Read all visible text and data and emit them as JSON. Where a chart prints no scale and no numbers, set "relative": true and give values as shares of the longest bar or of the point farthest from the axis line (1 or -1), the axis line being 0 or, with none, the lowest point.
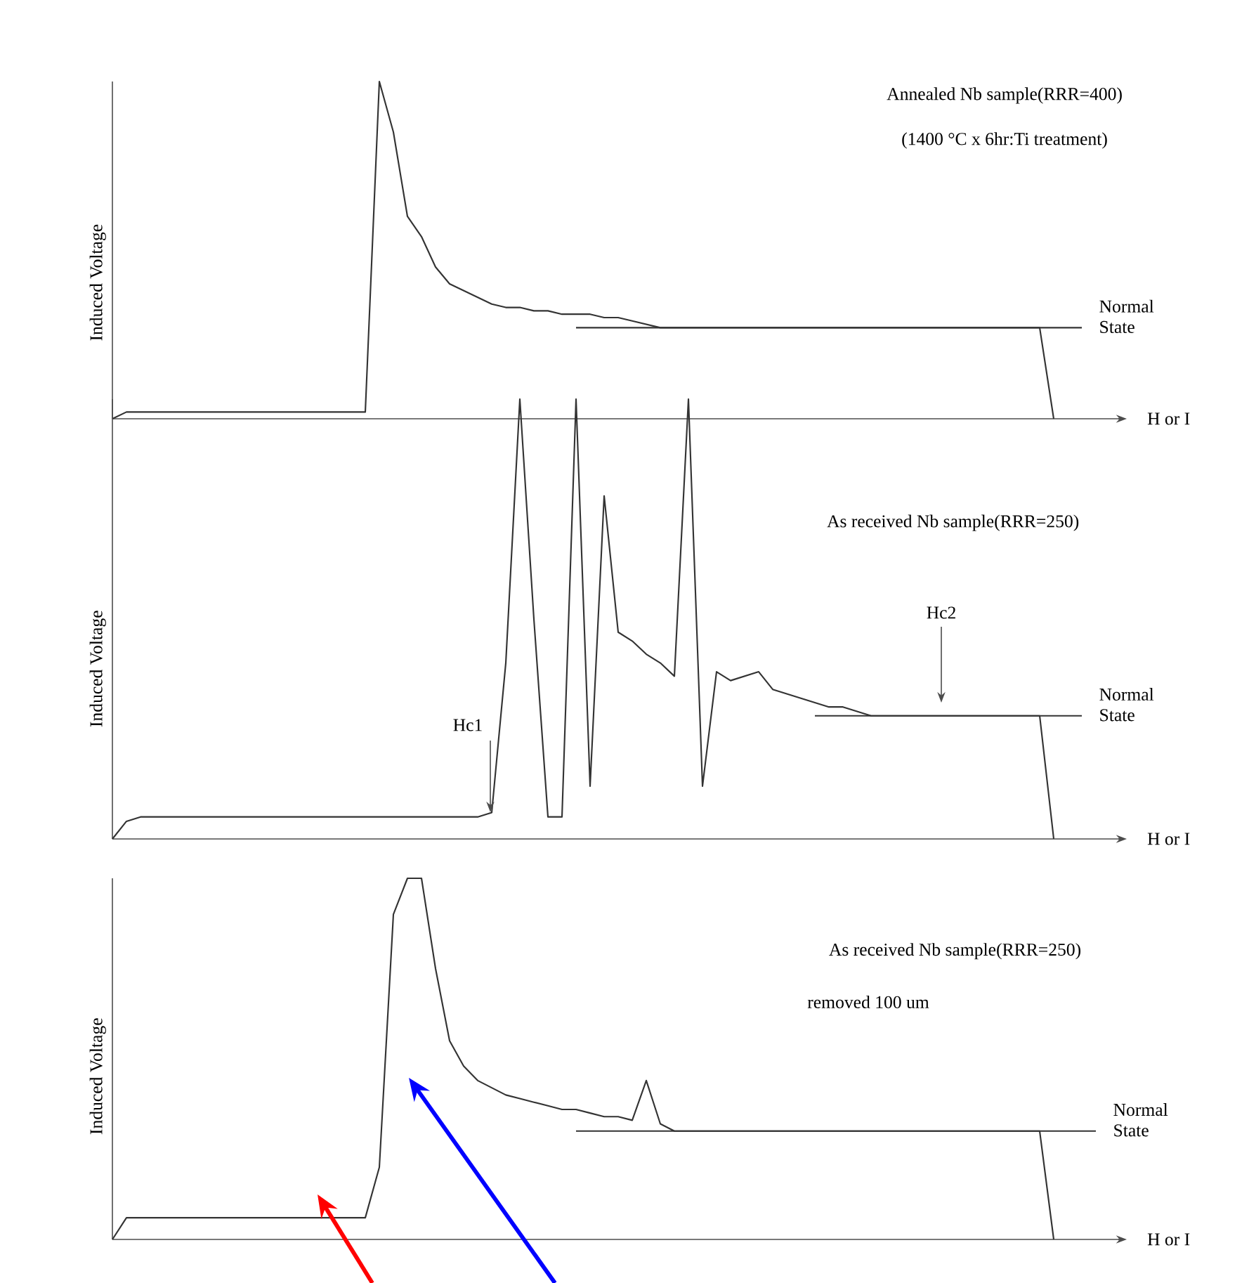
{
  "chart_data": [
    {
      "type": "line",
      "relative": true,
      "title": "Annealed Nb sample(RRR=400)",
      "subtitle": "(1400 °C x 6hr:Ti treatment)",
      "xlabel": "H or I",
      "ylabel": "Induced Voltage",
      "categories": [
        null,
        null,
        null,
        null,
        null,
        null,
        null,
        null,
        null,
        null,
        null,
        null,
        null,
        null,
        null,
        null,
        null,
        null,
        null,
        null,
        null,
        null,
        null,
        null,
        null,
        null,
        null,
        null,
        null,
        null,
        null,
        null,
        null,
        null,
        null,
        null,
        null,
        null,
        null,
        null,
        null,
        null,
        null,
        null,
        null,
        null,
        null,
        null,
        null,
        null,
        null,
        null,
        null,
        null,
        null,
        null,
        null,
        null,
        null,
        null,
        null,
        null,
        null,
        null,
        null,
        null,
        null,
        null,
        null,
        null,
        null,
        null,
        null
      ],
      "series": [
        {
          "color": "#333333",
          "values": [
            0,
            0.02,
            0.02,
            0.02,
            0.02,
            0.02,
            0.02,
            0.02,
            0.02,
            0.02,
            0.02,
            0.02,
            0.02,
            0.02,
            0.02,
            0.02,
            0.02,
            0.02,
            0.02,
            1,
            0.85,
            0.6,
            0.54,
            0.45,
            0.4,
            0.38,
            0.36,
            0.34,
            0.33,
            0.33,
            0.32,
            0.32,
            0.31,
            0.31,
            0.31,
            0.3,
            0.3,
            0.29,
            0.28,
            0.27,
            0.27,
            0.27,
            0.27,
            0.27,
            0.27,
            0.27,
            0.27,
            0.27,
            0.27,
            0.27,
            0.27,
            0.27,
            0.27,
            0.27,
            0.27,
            0.27,
            0.27,
            0.27,
            0.27,
            0.27,
            0.27,
            0.27,
            0.27,
            0.27,
            0.27,
            0.27,
            0.27,
            0,
            null,
            null,
            null,
            null,
            null
          ]
        },
        {
          "name": "Normal State",
          "color": "#333333",
          "values": [
            null,
            null,
            null,
            null,
            null,
            null,
            null,
            null,
            null,
            null,
            null,
            null,
            null,
            null,
            null,
            null,
            null,
            null,
            null,
            null,
            null,
            null,
            null,
            null,
            null,
            null,
            null,
            null,
            null,
            null,
            null,
            null,
            null,
            0.27,
            0.27,
            0.27,
            0.27,
            0.27,
            0.27,
            0.27,
            0.27,
            0.27,
            0.27,
            0.27,
            0.27,
            0.27,
            0.27,
            0.27,
            0.27,
            0.27,
            0.27,
            0.27,
            0.27,
            0.27,
            0.27,
            0.27,
            0.27,
            0.27,
            0.27,
            0.27,
            0.27,
            0.27,
            0.27,
            0.27,
            0.27,
            0.27,
            0.27,
            0.27,
            0.27,
            0.27,
            null,
            null,
            null
          ]
        }
      ]
    },
    {
      "type": "line",
      "relative": true,
      "title": "As received Nb sample(RRR=250)",
      "xlabel": "H or I",
      "ylabel": "Induced Voltage",
      "annotations": [
        "Hc1",
        "Hc2"
      ],
      "categories": [
        null,
        null,
        null,
        null,
        null,
        null,
        null,
        null,
        null,
        null,
        null,
        null,
        null,
        null,
        null,
        null,
        null,
        null,
        null,
        null,
        null,
        null,
        null,
        null,
        null,
        null,
        null,
        null,
        null,
        null,
        null,
        null,
        null,
        null,
        null,
        null,
        null,
        null,
        null,
        null,
        null,
        null,
        null,
        null,
        null,
        null,
        null,
        null,
        null,
        null,
        null,
        null,
        null,
        null,
        null,
        null,
        null,
        null,
        null,
        null,
        null,
        null,
        null,
        null,
        null,
        null,
        null,
        null,
        null,
        null,
        null,
        null,
        null
      ],
      "series": [
        {
          "color": "#333333",
          "values": [
            0,
            0.04,
            0.05,
            0.05,
            0.05,
            0.05,
            0.05,
            0.05,
            0.05,
            0.05,
            0.05,
            0.05,
            0.05,
            0.05,
            0.05,
            0.05,
            0.05,
            0.05,
            0.05,
            0.05,
            0.05,
            0.05,
            0.05,
            0.05,
            0.05,
            0.05,
            0.05,
            0.06,
            0.4,
            1,
            0.5,
            0.05,
            0.05,
            1,
            0.12,
            0.78,
            0.47,
            0.45,
            0.42,
            0.4,
            0.37,
            1,
            0.12,
            0.38,
            0.36,
            0.37,
            0.38,
            0.34,
            0.33,
            0.32,
            0.31,
            0.3,
            0.3,
            0.29,
            0.28,
            0.28,
            0.28,
            0.28,
            0.28,
            0.28,
            0.28,
            0.28,
            0.28,
            0.28,
            0.28,
            0.28,
            0.28,
            0,
            null,
            null,
            null,
            null,
            null
          ]
        },
        {
          "name": "Normal State",
          "color": "#333333",
          "values": [
            null,
            null,
            null,
            null,
            null,
            null,
            null,
            null,
            null,
            null,
            null,
            null,
            null,
            null,
            null,
            null,
            null,
            null,
            null,
            null,
            null,
            null,
            null,
            null,
            null,
            null,
            null,
            null,
            null,
            null,
            null,
            null,
            null,
            null,
            null,
            null,
            null,
            null,
            null,
            null,
            null,
            null,
            null,
            null,
            null,
            null,
            null,
            null,
            null,
            null,
            0.28,
            0.28,
            0.28,
            0.28,
            0.28,
            0.28,
            0.28,
            0.28,
            0.28,
            0.28,
            0.28,
            0.28,
            0.28,
            0.28,
            0.28,
            0.28,
            0.28,
            0.28,
            0.28,
            0.28,
            null,
            null,
            null
          ]
        }
      ]
    },
    {
      "type": "line",
      "relative": true,
      "title": "As received Nb sample(RRR=250)",
      "subtitle": "removed 100 um",
      "xlabel": "H or I",
      "ylabel": "Induced Voltage",
      "categories": [
        null,
        null,
        null,
        null,
        null,
        null,
        null,
        null,
        null,
        null,
        null,
        null,
        null,
        null,
        null,
        null,
        null,
        null,
        null,
        null,
        null,
        null,
        null,
        null,
        null,
        null,
        null,
        null,
        null,
        null,
        null,
        null,
        null,
        null,
        null,
        null,
        null,
        null,
        null,
        null,
        null,
        null,
        null,
        null,
        null,
        null,
        null,
        null,
        null,
        null,
        null,
        null,
        null,
        null,
        null,
        null,
        null,
        null,
        null,
        null,
        null,
        null,
        null,
        null,
        null,
        null,
        null,
        null,
        null,
        null,
        null,
        null,
        null
      ],
      "series": [
        {
          "color": "#333333",
          "values": [
            0,
            0.06,
            0.06,
            0.06,
            0.06,
            0.06,
            0.06,
            0.06,
            0.06,
            0.06,
            0.06,
            0.06,
            0.06,
            0.06,
            0.06,
            0.06,
            0.06,
            0.06,
            0.06,
            0.2,
            0.9,
            1,
            1,
            0.75,
            0.55,
            0.48,
            0.44,
            0.42,
            0.4,
            0.39,
            0.38,
            0.37,
            0.36,
            0.36,
            0.35,
            0.34,
            0.34,
            0.33,
            0.44,
            0.32,
            0.3,
            0.3,
            0.3,
            0.3,
            0.3,
            0.3,
            0.3,
            0.3,
            0.3,
            0.3,
            0.3,
            0.3,
            0.3,
            0.3,
            0.3,
            0.3,
            0.3,
            0.3,
            0.3,
            0.3,
            0.3,
            0.3,
            0.3,
            0.3,
            0.3,
            0.3,
            0.3,
            0,
            null,
            null,
            null,
            null,
            null
          ]
        },
        {
          "name": "Normal State",
          "color": "#333333",
          "values": [
            null,
            null,
            null,
            null,
            null,
            null,
            null,
            null,
            null,
            null,
            null,
            null,
            null,
            null,
            null,
            null,
            null,
            null,
            null,
            null,
            null,
            null,
            null,
            null,
            null,
            null,
            null,
            null,
            null,
            null,
            null,
            null,
            null,
            0.3,
            0.3,
            0.3,
            0.3,
            0.3,
            0.3,
            0.3,
            0.3,
            0.3,
            0.3,
            0.3,
            0.3,
            0.3,
            0.3,
            0.3,
            0.3,
            0.3,
            0.3,
            0.3,
            0.3,
            0.3,
            0.3,
            0.3,
            0.3,
            0.3,
            0.3,
            0.3,
            0.3,
            0.3,
            0.3,
            0.3,
            0.3,
            0.3,
            0.3,
            0.3,
            0.3,
            0.3,
            0.3,
            null,
            null
          ]
        }
      ]
    }
  ]
}
